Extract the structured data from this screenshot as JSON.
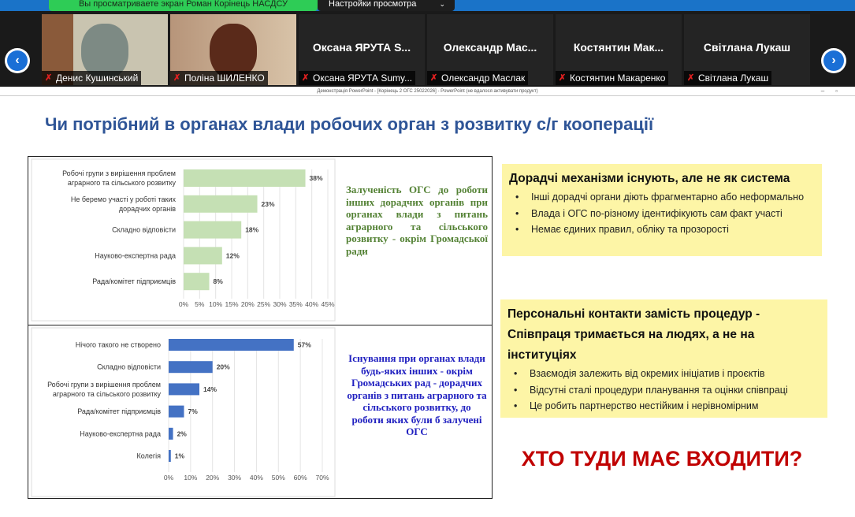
{
  "share_banner": {
    "text": "Вы просматриваете экран Роман Корінець НАСДСУ",
    "view_options": "Настройки просмотра"
  },
  "participants": [
    {
      "name": "Денис Кушинський",
      "video": true
    },
    {
      "name": "Поліна ШИЛЕНКО",
      "video": true
    },
    {
      "name": "Оксана ЯРУТА Sumy...",
      "big": "Оксана ЯРУТА S..."
    },
    {
      "name": "Олександр Маслак",
      "big": "Олександр Мас..."
    },
    {
      "name": "Костянтин Макаренко",
      "big": "Костянтин Мак..."
    },
    {
      "name": "Світлана Лукаш",
      "big": "Світлана Лукаш"
    }
  ],
  "window_title": "Демонстрація PowerPoint - [Корінець 2 ОГС 25022026] - PowerPoint (не вдалося активувати продукт)",
  "slide": {
    "title": "Чи потрібний в органах влади робочих орган з розвитку с/г кооперації",
    "note1": "Залученість ОГС до роботи інших дорадчих органів при органах влади з питань аграрного та сільського розвитку - окрім Громадської ради",
    "note2": "Існування при органах влади будь-яких інших - окрім Громадських рад - дорадчих органів з питань аграрного та сільського розвитку, до роботи яких були б залучені ОГС",
    "box1": {
      "title": "Дорадчі механізми існують, але не як система",
      "items": [
        "Інші дорадчі органи діють фрагментарно або неформально",
        "Влада і ОГС по-різному ідентифікують сам факт участі",
        "Немає єдиних правил, обліку та прозорості"
      ]
    },
    "box2": {
      "title": "Персональні контакти замість процедур - Співпраця тримається на людях, а не на інституціях",
      "items": [
        "Взаємодія залежить від окремих ініціатив і проєктів",
        "Відсутні сталі процедури планування та оцінки співпраці",
        "Це робить партнерство нестійким і нерівномірним"
      ]
    },
    "question": "ХТО ТУДИ МАЄ ВХОДИТИ?"
  },
  "colors": {
    "chart1": "#c5e0b4",
    "chart2": "#4472c4",
    "title": "#2f5597",
    "note1": "#548235",
    "note2": "#2020c0",
    "question": "#c00000",
    "box": "#fdf5a6"
  },
  "chart_data": [
    {
      "type": "bar",
      "orientation": "horizontal",
      "categories": [
        "Робочі групи з вирішення проблем|аграрного та сільського розвитку",
        "Не беремо участі у роботі таких|дорадчих органів",
        "Складно відповісти",
        "Науково-експертна рада",
        "Рада/комітет підприємців"
      ],
      "values": [
        38,
        23,
        18,
        12,
        8
      ],
      "data_labels": [
        "38%",
        "23%",
        "18%",
        "12%",
        "8%"
      ],
      "xticks": [
        "0%",
        "5%",
        "10%",
        "15%",
        "20%",
        "25%",
        "30%",
        "35%",
        "40%",
        "45%"
      ],
      "xlim": [
        0,
        45
      ],
      "grid": true
    },
    {
      "type": "bar",
      "orientation": "horizontal",
      "categories": [
        "Нічого такого не створено",
        "Складно відповісти",
        "Робочі групи з вирішення проблем|аграрного та сільського розвитку",
        "Рада/комітет підприємців",
        "Науково-експертна рада",
        "Колегія"
      ],
      "values": [
        57,
        20,
        14,
        7,
        2,
        1
      ],
      "data_labels": [
        "57%",
        "20%",
        "14%",
        "7%",
        "2%",
        "1%"
      ],
      "xticks": [
        "0%",
        "10%",
        "20%",
        "30%",
        "40%",
        "50%",
        "60%",
        "70%"
      ],
      "xlim": [
        0,
        70
      ],
      "grid": true
    }
  ]
}
